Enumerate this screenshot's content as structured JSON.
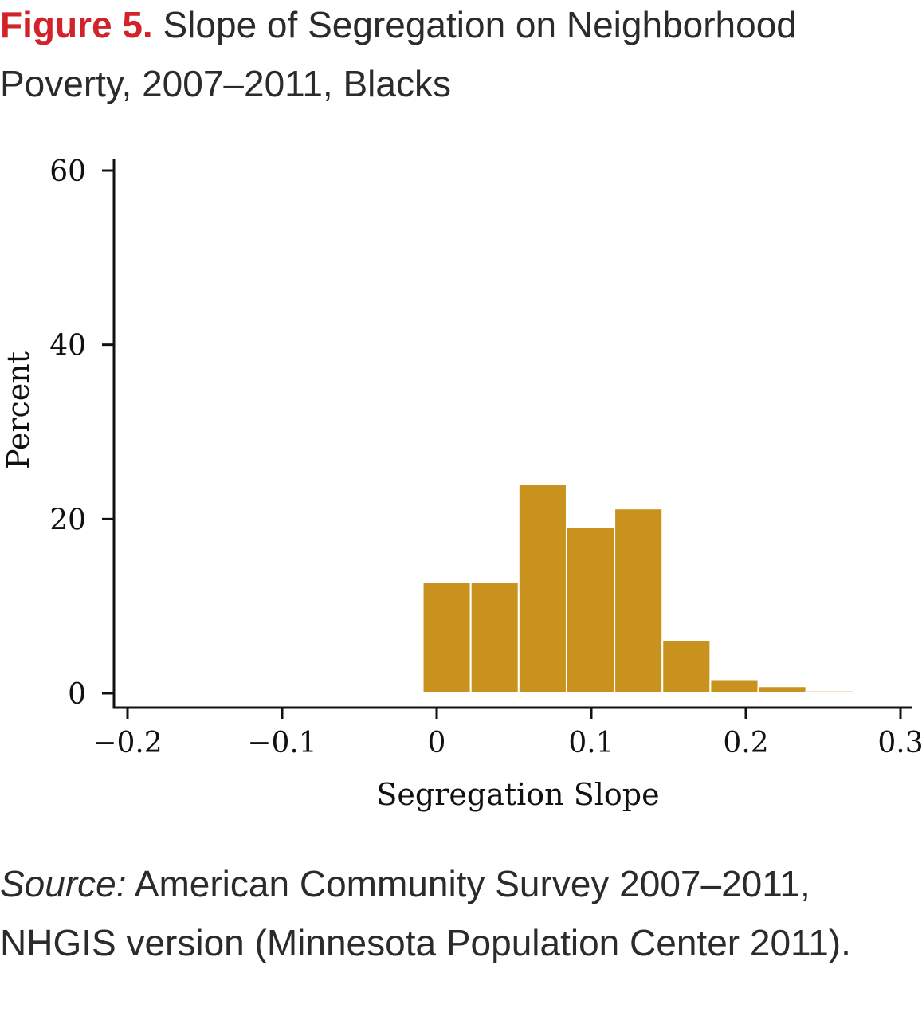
{
  "figure": {
    "label": "Figure 5.",
    "title": "Slope of Segregation on Neighborhood Poverty, 2007–2011, Blacks"
  },
  "source": {
    "label": "Source:",
    "text": "American Community Survey 2007–2011, NHGIS version (Minnesota Population Center 2011)."
  },
  "chart_data": {
    "type": "bar",
    "histogram": true,
    "bar_color": "#c9921f",
    "bar_edge_color": "#ffffff",
    "xlabel": "Segregation Slope",
    "ylabel": "Percent",
    "xlim": [
      -0.2,
      0.3
    ],
    "ylim": [
      0,
      60
    ],
    "xticks": [
      {
        "value": -0.2,
        "label": "−0.2"
      },
      {
        "value": -0.1,
        "label": "−0.1"
      },
      {
        "value": 0,
        "label": "0"
      },
      {
        "value": 0.1,
        "label": "0.1"
      },
      {
        "value": 0.2,
        "label": "0.2"
      },
      {
        "value": 0.3,
        "label": "0.3"
      }
    ],
    "yticks": [
      {
        "value": 0,
        "label": "0"
      },
      {
        "value": 20,
        "label": "20"
      },
      {
        "value": 40,
        "label": "40"
      },
      {
        "value": 60,
        "label": "60"
      }
    ],
    "bins": [
      {
        "start": -0.04,
        "end": -0.009,
        "value": 0.2
      },
      {
        "start": -0.009,
        "end": 0.022,
        "value": 12.8
      },
      {
        "start": 0.022,
        "end": 0.053,
        "value": 12.8
      },
      {
        "start": 0.053,
        "end": 0.084,
        "value": 24.0
      },
      {
        "start": 0.084,
        "end": 0.115,
        "value": 19.1
      },
      {
        "start": 0.115,
        "end": 0.146,
        "value": 21.2
      },
      {
        "start": 0.146,
        "end": 0.177,
        "value": 6.1
      },
      {
        "start": 0.177,
        "end": 0.208,
        "value": 1.6
      },
      {
        "start": 0.208,
        "end": 0.239,
        "value": 0.8
      },
      {
        "start": 0.239,
        "end": 0.27,
        "value": 0.3
      }
    ],
    "grid": false
  }
}
